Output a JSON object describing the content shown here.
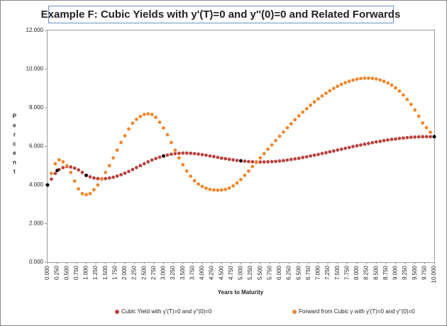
{
  "chart_data": {
    "type": "scatter",
    "title": "Example F: Cubic Yields with y'(T)=0 and y''(0)=0 and Related Forwards",
    "x_label": "Years to Maturity",
    "y_label": "Percent",
    "legend": "bottom",
    "grid": false,
    "xlim": [
      0,
      10
    ],
    "ylim": [
      0,
      12
    ],
    "yticks": [
      {
        "value": 0,
        "label": "0.000"
      },
      {
        "value": 2,
        "label": "2.000"
      },
      {
        "value": 4,
        "label": "4.000"
      },
      {
        "value": 6,
        "label": "6.000"
      },
      {
        "value": 8,
        "label": "8.000"
      },
      {
        "value": 10,
        "label": "10.000"
      },
      {
        "value": 12,
        "label": "12.000"
      }
    ],
    "xticks": [
      {
        "value": 0,
        "label": "0.000"
      },
      {
        "value": 0.25,
        "label": "0.250"
      },
      {
        "value": 0.5,
        "label": "0.500"
      },
      {
        "value": 0.75,
        "label": "0.750"
      },
      {
        "value": 1,
        "label": "1.000"
      },
      {
        "value": 1.25,
        "label": "1.250"
      },
      {
        "value": 1.5,
        "label": "1.500"
      },
      {
        "value": 1.75,
        "label": "1.750"
      },
      {
        "value": 2,
        "label": "2.000"
      },
      {
        "value": 2.25,
        "label": "2.250"
      },
      {
        "value": 2.5,
        "label": "2.500"
      },
      {
        "value": 2.75,
        "label": "2.750"
      },
      {
        "value": 3,
        "label": "3.000"
      },
      {
        "value": 3.25,
        "label": "3.250"
      },
      {
        "value": 3.5,
        "label": "3.500"
      },
      {
        "value": 3.75,
        "label": "3.750"
      },
      {
        "value": 4,
        "label": "4.000"
      },
      {
        "value": 4.25,
        "label": "4.250"
      },
      {
        "value": 4.5,
        "label": "4.500"
      },
      {
        "value": 4.75,
        "label": "4.750"
      },
      {
        "value": 5,
        "label": "5.000"
      },
      {
        "value": 5.25,
        "label": "5.250"
      },
      {
        "value": 5.5,
        "label": "5.500"
      },
      {
        "value": 5.75,
        "label": "5.750"
      },
      {
        "value": 6,
        "label": "6.000"
      },
      {
        "value": 6.25,
        "label": "6.250"
      },
      {
        "value": 6.5,
        "label": "6.500"
      },
      {
        "value": 6.75,
        "label": "6.750"
      },
      {
        "value": 7,
        "label": "7.000"
      },
      {
        "value": 7.25,
        "label": "7.250"
      },
      {
        "value": 7.5,
        "label": "7.500"
      },
      {
        "value": 7.75,
        "label": "7.750"
      },
      {
        "value": 8,
        "label": "8.000"
      },
      {
        "value": 8.25,
        "label": "8.250"
      },
      {
        "value": 8.5,
        "label": "8.500"
      },
      {
        "value": 8.75,
        "label": "8.750"
      },
      {
        "value": 9,
        "label": "9.000"
      },
      {
        "value": 9.25,
        "label": "9.250"
      },
      {
        "value": 9.5,
        "label": "9.500"
      },
      {
        "value": 9.75,
        "label": "9.750"
      },
      {
        "value": 10,
        "label": "10.000"
      }
    ],
    "x": [
      0,
      0.1,
      0.2,
      0.3,
      0.4,
      0.5,
      0.6,
      0.7,
      0.8,
      0.9,
      1,
      1.1,
      1.2,
      1.3,
      1.4,
      1.5,
      1.6,
      1.7,
      1.8,
      1.9,
      2,
      2.1,
      2.2,
      2.3,
      2.4,
      2.5,
      2.6,
      2.7,
      2.8,
      2.9,
      3,
      3.1,
      3.2,
      3.3,
      3.4,
      3.5,
      3.6,
      3.7,
      3.8,
      3.9,
      4,
      4.1,
      4.2,
      4.3,
      4.4,
      4.5,
      4.6,
      4.7,
      4.8,
      4.9,
      5,
      5.1,
      5.2,
      5.3,
      5.4,
      5.5,
      5.6,
      5.7,
      5.8,
      5.9,
      6,
      6.1,
      6.2,
      6.3,
      6.4,
      6.5,
      6.6,
      6.7,
      6.8,
      6.9,
      7,
      7.1,
      7.2,
      7.3,
      7.4,
      7.5,
      7.6,
      7.7,
      7.8,
      7.9,
      8,
      8.1,
      8.2,
      8.3,
      8.4,
      8.5,
      8.6,
      8.7,
      8.8,
      8.9,
      9,
      9.1,
      9.2,
      9.3,
      9.4,
      9.5,
      9.6,
      9.7,
      9.8,
      9.9,
      10
    ],
    "series": [
      {
        "name": "Cubic Yield with y'(T)=0 and y''(0)=0",
        "color": "#b8433e",
        "values": [
          4.0,
          4.3,
          4.6,
          4.8,
          4.9,
          4.95,
          4.93,
          4.87,
          4.78,
          4.65,
          4.5,
          4.42,
          4.36,
          4.33,
          4.32,
          4.33,
          4.36,
          4.4,
          4.46,
          4.53,
          4.61,
          4.7,
          4.8,
          4.9,
          5.0,
          5.1,
          5.2,
          5.29,
          5.37,
          5.44,
          5.5,
          5.55,
          5.59,
          5.62,
          5.64,
          5.65,
          5.65,
          5.64,
          5.62,
          5.6,
          5.57,
          5.54,
          5.5,
          5.47,
          5.43,
          5.39,
          5.36,
          5.33,
          5.3,
          5.27,
          5.25,
          5.23,
          5.21,
          5.2,
          5.19,
          5.19,
          5.19,
          5.2,
          5.21,
          5.22,
          5.24,
          5.26,
          5.29,
          5.32,
          5.35,
          5.38,
          5.42,
          5.46,
          5.5,
          5.54,
          5.58,
          5.63,
          5.67,
          5.72,
          5.76,
          5.81,
          5.85,
          5.9,
          5.94,
          5.99,
          6.03,
          6.07,
          6.11,
          6.15,
          6.19,
          6.23,
          6.26,
          6.3,
          6.33,
          6.36,
          6.38,
          6.41,
          6.43,
          6.45,
          6.47,
          6.48,
          6.49,
          6.5,
          6.5,
          6.5,
          6.5
        ]
      },
      {
        "name": "Forward from Cubic y with y'(T)=0 and y''(0)=0",
        "color": "#f0862c",
        "values": [
          4.0,
          4.6,
          5.1,
          5.3,
          5.2,
          5.0,
          4.65,
          4.2,
          3.8,
          3.55,
          3.5,
          3.55,
          3.75,
          4.0,
          4.3,
          4.65,
          5.0,
          5.4,
          5.8,
          6.2,
          6.55,
          6.9,
          7.2,
          7.4,
          7.55,
          7.65,
          7.68,
          7.65,
          7.5,
          7.25,
          6.95,
          6.6,
          6.2,
          5.8,
          5.4,
          5.05,
          4.72,
          4.45,
          4.22,
          4.05,
          3.92,
          3.83,
          3.77,
          3.74,
          3.73,
          3.74,
          3.77,
          3.84,
          3.95,
          4.1,
          4.28,
          4.5,
          4.72,
          4.95,
          5.17,
          5.4,
          5.62,
          5.85,
          6.07,
          6.3,
          6.52,
          6.74,
          6.96,
          7.17,
          7.38,
          7.58,
          7.77,
          7.95,
          8.13,
          8.3,
          8.46,
          8.61,
          8.75,
          8.88,
          9.0,
          9.11,
          9.21,
          9.3,
          9.37,
          9.43,
          9.48,
          9.51,
          9.53,
          9.53,
          9.52,
          9.49,
          9.44,
          9.37,
          9.28,
          9.17,
          9.03,
          8.86,
          8.66,
          8.43,
          8.17,
          7.88,
          7.56,
          7.21,
          6.97,
          6.73,
          6.5
        ]
      },
      {
        "color": "#000000",
        "x": [
          0,
          0.25,
          1,
          3,
          5,
          10
        ],
        "values": [
          4.0,
          4.75,
          4.5,
          5.5,
          5.25,
          6.5
        ]
      }
    ]
  }
}
